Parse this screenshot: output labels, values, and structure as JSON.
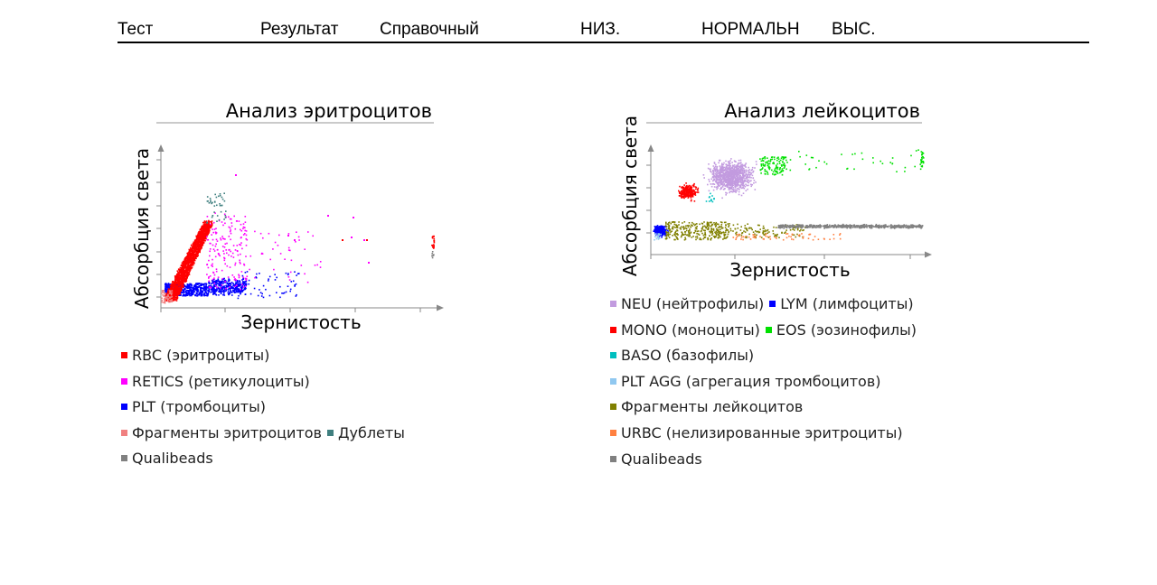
{
  "header": {
    "test": "Тест",
    "result": "Результат",
    "reference": "Справочный",
    "low": "НИЗ.",
    "normal": "НОРМАЛЬН",
    "high": "ВЫС."
  },
  "chart_data": [
    {
      "type": "scatter",
      "title": "Анализ эритроцитов",
      "xlabel": "Зернистость",
      "ylabel": "Абсорбция света",
      "grid": false,
      "legend_placement": "bottom",
      "series": [
        {
          "name": "RBC (эритроциты)",
          "color": "#ff0000"
        },
        {
          "name": "RETICS (ретикулоциты)",
          "color": "#ff00ff"
        },
        {
          "name": "PLT (тромбоциты)",
          "color": "#0000ff"
        },
        {
          "name": "Фрагменты эритроцитов",
          "color": "#f08080"
        },
        {
          "name": "Дублеты",
          "color": "#3f7f7f"
        },
        {
          "name": "Qualibeads",
          "color": "#808080"
        }
      ],
      "legend_rows": [
        [
          0
        ],
        [
          1
        ],
        [
          2
        ],
        [
          3,
          4
        ],
        [
          5
        ]
      ]
    },
    {
      "type": "scatter",
      "title": "Анализ лейкоцитов",
      "xlabel": "Зернистость",
      "ylabel": "Абсорбция света",
      "grid": false,
      "legend_placement": "bottom",
      "series": [
        {
          "name": "NEU (нейтрофилы)",
          "color": "#c29bdf"
        },
        {
          "name": "LYM (лимфоциты)",
          "color": "#0000ff"
        },
        {
          "name": "MONO (моноциты)",
          "color": "#ff0000"
        },
        {
          "name": "EOS (эозинофилы)",
          "color": "#00e000"
        },
        {
          "name": "BASO (базофилы)",
          "color": "#00bfbf"
        },
        {
          "name": "PLT AGG (агрегация тромбоцитов)",
          "color": "#90c8f0"
        },
        {
          "name": "Фрагменты лейкоцитов",
          "color": "#808000"
        },
        {
          "name": "URBC (нелизированные эритроциты)",
          "color": "#ff8040"
        },
        {
          "name": "Qualibeads",
          "color": "#808080"
        }
      ],
      "legend_rows": [
        [
          0,
          1
        ],
        [
          2,
          3
        ],
        [
          4
        ],
        [
          5
        ],
        [
          6
        ],
        [
          7
        ],
        [
          8
        ]
      ]
    }
  ]
}
